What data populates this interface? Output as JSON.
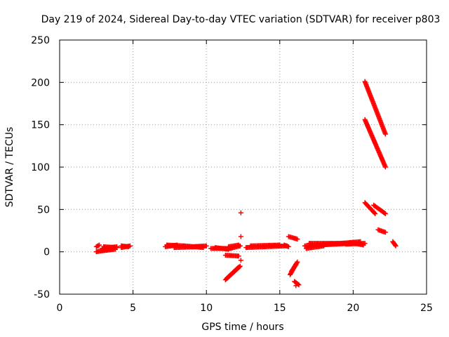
{
  "chart_data": {
    "type": "scatter",
    "title": "Day 219 of 2024, Sidereal Day-to-day VTEC variation (SDTVAR) for receiver p803",
    "xlabel": "GPS time / hours",
    "ylabel": "SDTVAR / TECUs",
    "xlim": [
      0,
      25
    ],
    "ylim": [
      -50,
      250
    ],
    "xticks": [
      0,
      5,
      10,
      15,
      20,
      25
    ],
    "yticks": [
      -50,
      0,
      50,
      100,
      150,
      200,
      250
    ],
    "grid": true,
    "marker": "+",
    "color": "#ff0000",
    "segments": [
      {
        "x0": 2.5,
        "y0": 6,
        "x1": 2.7,
        "y1": 8
      },
      {
        "x0": 2.5,
        "y0": 0,
        "x1": 3.6,
        "y1": 4
      },
      {
        "x0": 2.8,
        "y0": 1,
        "x1": 3.8,
        "y1": 3
      },
      {
        "x0": 2.9,
        "y0": 4,
        "x1": 3.9,
        "y1": 6
      },
      {
        "x0": 3.0,
        "y0": 6,
        "x1": 3.9,
        "y1": 5
      },
      {
        "x0": 4.2,
        "y0": 5,
        "x1": 4.8,
        "y1": 7
      },
      {
        "x0": 4.2,
        "y0": 7,
        "x1": 4.7,
        "y1": 6
      },
      {
        "x0": 7.2,
        "y0": 6,
        "x1": 8.0,
        "y1": 8
      },
      {
        "x0": 7.3,
        "y0": 8,
        "x1": 8.5,
        "y1": 7
      },
      {
        "x0": 7.8,
        "y0": 5,
        "x1": 9.5,
        "y1": 6
      },
      {
        "x0": 8.5,
        "y0": 7,
        "x1": 9.8,
        "y1": 5
      },
      {
        "x0": 9.0,
        "y0": 6,
        "x1": 10.0,
        "y1": 7
      },
      {
        "x0": 10.3,
        "y0": 4,
        "x1": 11.3,
        "y1": 4
      },
      {
        "x0": 10.6,
        "y0": 5,
        "x1": 11.5,
        "y1": 3
      },
      {
        "x0": 11.3,
        "y0": -33,
        "x1": 12.3,
        "y1": -17
      },
      {
        "x0": 11.4,
        "y0": -31,
        "x1": 12.2,
        "y1": -18
      },
      {
        "x0": 11.3,
        "y0": -4,
        "x1": 12.2,
        "y1": -5
      },
      {
        "x0": 11.4,
        "y0": 3,
        "x1": 12.3,
        "y1": 7
      },
      {
        "x0": 11.5,
        "y0": 6,
        "x1": 12.2,
        "y1": 8
      },
      {
        "x0": 12.7,
        "y0": 5,
        "x1": 14.0,
        "y1": 6
      },
      {
        "x0": 13.0,
        "y0": 7,
        "x1": 15.0,
        "y1": 8
      },
      {
        "x0": 14.0,
        "y0": 6,
        "x1": 15.5,
        "y1": 7
      },
      {
        "x0": 15.6,
        "y0": 6,
        "x1": 15.3,
        "y1": 8
      },
      {
        "x0": 15.6,
        "y0": 18,
        "x1": 16.2,
        "y1": 15
      },
      {
        "x0": 15.7,
        "y0": -27,
        "x1": 16.1,
        "y1": -15
      },
      {
        "x0": 15.8,
        "y0": -23,
        "x1": 16.2,
        "y1": -12
      },
      {
        "x0": 16.0,
        "y0": -35,
        "x1": 16.3,
        "y1": -39
      },
      {
        "x0": 16.7,
        "y0": 7,
        "x1": 18.5,
        "y1": 9
      },
      {
        "x0": 16.8,
        "y0": 4,
        "x1": 18.0,
        "y1": 7
      },
      {
        "x0": 17.0,
        "y0": 10,
        "x1": 19.5,
        "y1": 10
      },
      {
        "x0": 17.5,
        "y0": 8,
        "x1": 20.0,
        "y1": 10
      },
      {
        "x0": 18.5,
        "y0": 9,
        "x1": 20.5,
        "y1": 12
      },
      {
        "x0": 19.5,
        "y0": 9,
        "x1": 20.8,
        "y1": 10
      },
      {
        "x0": 19.8,
        "y0": 11,
        "x1": 20.7,
        "y1": 8
      },
      {
        "x0": 20.8,
        "y0": 201,
        "x1": 22.2,
        "y1": 139
      },
      {
        "x0": 20.8,
        "y0": 156,
        "x1": 22.2,
        "y1": 100
      },
      {
        "x0": 20.8,
        "y0": 58,
        "x1": 21.5,
        "y1": 45
      },
      {
        "x0": 21.4,
        "y0": 55,
        "x1": 22.2,
        "y1": 45
      },
      {
        "x0": 21.7,
        "y0": 26,
        "x1": 22.2,
        "y1": 23
      },
      {
        "x0": 22.7,
        "y0": 12,
        "x1": 22.9,
        "y1": 7
      }
    ],
    "outliers": [
      {
        "x": 12.35,
        "y": 46
      },
      {
        "x": 12.35,
        "y": 18
      },
      {
        "x": 12.35,
        "y": -10
      },
      {
        "x": 16.1,
        "y": -40
      }
    ]
  }
}
